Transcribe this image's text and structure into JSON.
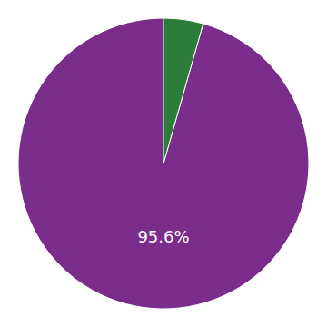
{
  "chart_data": {
    "type": "pie",
    "values": [
      95.6,
      4.4
    ],
    "colors": [
      "#7b2d8b",
      "#2d7d3a"
    ],
    "annotations": [
      {
        "text": "95.6%"
      }
    ]
  }
}
